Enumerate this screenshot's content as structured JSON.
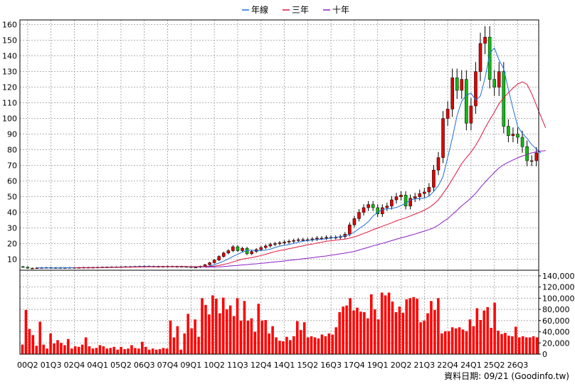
{
  "legend": [
    {
      "name": "年線",
      "color": "#1f6fd8"
    },
    {
      "name": "三年",
      "color": "#e0143c"
    },
    {
      "name": "十年",
      "color": "#8a1fc8"
    }
  ],
  "footer_text": "資料日期: 09/21 (Goodinfo.tw)",
  "colors": {
    "up": "#e00000",
    "down": "#11bb11",
    "wick": "#000000",
    "volume": "#ff0000",
    "grid": "#9a9a9a"
  },
  "chart_data": [
    {
      "type": "candlestick",
      "title": "",
      "ylim": [
        3,
        163
      ],
      "yticks": [
        10,
        20,
        30,
        40,
        50,
        60,
        70,
        80,
        90,
        100,
        110,
        120,
        130,
        140,
        150,
        160
      ],
      "grid": true,
      "legend_position": "top-center",
      "x_tick_labels": [
        "00Q2",
        "01Q3",
        "02Q4",
        "04Q1",
        "05Q2",
        "06Q3",
        "07Q4",
        "09Q1",
        "10Q2",
        "11Q3",
        "12Q4",
        "14Q1",
        "15Q2",
        "16Q3",
        "17Q4",
        "19Q1",
        "20Q2",
        "21Q3",
        "22Q4",
        "24Q1",
        "25Q2",
        "26Q3"
      ],
      "quarters_per_tick": 5,
      "first_quarter": "00Q1",
      "close": [
        5,
        4.3,
        4.3,
        4.5,
        4.6,
        4.7,
        4.4,
        4.6,
        4.5,
        4.6,
        4.7,
        4.7,
        4.7,
        4.8,
        4.8,
        4.8,
        4.9,
        5.0,
        5.0,
        5.1,
        5.1,
        5.2,
        5.3,
        5.3,
        5.4,
        5.5,
        5.6,
        5.5,
        5.4,
        5.4,
        5.4,
        5.5,
        5.4,
        5.4,
        5.3,
        5.2,
        4.9,
        4.9,
        5.5,
        6.5,
        7.8,
        9.5,
        11.8,
        14,
        15.5,
        18,
        15.5,
        17,
        13.5,
        15,
        16.2,
        17.5,
        18.5,
        19.5,
        20,
        20.5,
        21,
        21.5,
        22,
        22.5,
        22.5,
        22.5,
        23,
        23.5,
        23.5,
        24,
        24,
        24,
        24.5,
        26,
        32,
        36,
        40,
        43,
        45,
        43,
        39,
        43,
        44,
        48,
        50,
        51,
        44,
        49,
        50,
        52,
        53,
        56,
        67,
        75,
        100,
        106,
        126,
        118,
        125,
        97,
        108,
        130,
        148,
        152,
        125,
        120,
        130,
        95,
        89,
        90,
        88,
        82,
        73,
        73,
        78
      ],
      "sma_year": [
        null,
        null,
        null,
        4.6,
        4.5,
        4.5,
        4.5,
        4.5,
        4.5,
        4.6,
        4.6,
        4.6,
        4.7,
        4.7,
        4.7,
        4.7,
        4.8,
        4.8,
        4.9,
        4.9,
        5.0,
        5.1,
        5.1,
        5.2,
        5.2,
        5.3,
        5.4,
        5.4,
        5.4,
        5.4,
        5.4,
        5.4,
        5.4,
        5.4,
        5.4,
        5.3,
        5.2,
        5.1,
        5.1,
        5.2,
        5.7,
        6.6,
        7.6,
        8.8,
        10.2,
        11.8,
        13.2,
        14.6,
        15.6,
        15.9,
        15.4,
        15.6,
        15.9,
        16.5,
        17.5,
        18.4,
        18.9,
        19.4,
        20.2,
        20.9,
        21.5,
        22.0,
        22.3,
        22.6,
        22.8,
        23.1,
        23.6,
        24.0,
        24.5,
        25.0,
        25.8,
        27.3,
        29.6,
        31.6,
        34.0,
        37.6,
        40.0,
        41.8,
        42.3,
        42.5,
        43.1,
        44.4,
        45.8,
        47.8,
        48.6,
        48.8,
        49.0,
        50.4,
        53.3,
        57.0,
        62.8,
        75.0,
        87.6,
        101.7,
        111.0,
        115.0,
        116.2,
        111.8,
        114.3,
        125.8,
        141.6,
        145.0,
        137.3,
        131.8,
        118.5,
        106.3,
        94.9,
        90.4,
        87.3,
        83.3,
        80.5,
        77.8
      ],
      "sma_3y": [
        null,
        null,
        null,
        null,
        null,
        null,
        null,
        null,
        null,
        null,
        null,
        4.6,
        4.6,
        4.6,
        4.6,
        4.7,
        4.7,
        4.7,
        4.8,
        4.8,
        4.8,
        4.9,
        5.0,
        5.0,
        5.0,
        5.1,
        5.1,
        5.2,
        5.2,
        5.3,
        5.3,
        5.3,
        5.3,
        5.3,
        5.4,
        5.4,
        5.3,
        5.3,
        5.3,
        5.3,
        5.4,
        5.6,
        6.1,
        6.7,
        7.4,
        8.3,
        9.2,
        10.1,
        10.6,
        11.1,
        11.7,
        12.4,
        13.2,
        14.1,
        14.9,
        15.6,
        16.1,
        16.8,
        17.3,
        18.0,
        18.6,
        19.3,
        19.7,
        20.4,
        20.9,
        21.5,
        21.8,
        22.2,
        22.6,
        22.9,
        23.5,
        24.3,
        25.3,
        26.5,
        27.6,
        28.9,
        30.0,
        31.1,
        32.2,
        33.3,
        34.6,
        35.6,
        36.5,
        37.7,
        38.9,
        40.0,
        41.4,
        43.0,
        45.2,
        48.0,
        52.0,
        56.3,
        61.2,
        66.1,
        71.2,
        74.9,
        78.5,
        82.8,
        88.0,
        93.9,
        99.1,
        104.0,
        109.5,
        113.2,
        116.5,
        119.4,
        122.1,
        123.4,
        121.8,
        115.8,
        108.5,
        101.0,
        94.0
      ],
      "sma_10y": [
        null,
        null,
        null,
        null,
        null,
        null,
        null,
        null,
        null,
        null,
        null,
        null,
        null,
        null,
        null,
        null,
        null,
        null,
        null,
        null,
        null,
        null,
        null,
        null,
        null,
        null,
        null,
        null,
        null,
        null,
        null,
        null,
        null,
        null,
        null,
        null,
        null,
        null,
        null,
        4.9,
        5.0,
        5.1,
        5.2,
        5.4,
        5.6,
        5.9,
        6.1,
        6.4,
        6.6,
        6.9,
        7.1,
        7.4,
        7.7,
        8.0,
        8.3,
        8.6,
        8.9,
        9.3,
        9.6,
        9.9,
        10.3,
        10.6,
        11.0,
        11.4,
        11.8,
        12.1,
        12.6,
        13.0,
        13.5,
        13.9,
        14.5,
        15.0,
        15.9,
        16.8,
        17.6,
        18.6,
        19.3,
        20.2,
        21.0,
        21.9,
        22.8,
        23.7,
        24.4,
        25.3,
        26.1,
        27.1,
        28.0,
        29.0,
        30.1,
        31.8,
        34.0,
        35.9,
        38.7,
        41.3,
        44.2,
        46.5,
        49.2,
        52.2,
        55.8,
        59.3,
        62.4,
        65.5,
        68.4,
        70.5,
        72.0,
        73.5,
        74.8,
        76.0,
        77.0,
        78.0,
        78.7,
        79.2,
        79.5
      ]
    },
    {
      "type": "bar",
      "title": "",
      "ylim": [
        0,
        150000
      ],
      "yticks": [
        0,
        20000,
        40000,
        60000,
        80000,
        100000,
        120000,
        140000
      ],
      "ytick_labels": [
        "0",
        "20,000",
        "40,000",
        "60,000",
        "80,000",
        "100,000",
        "120,000",
        "140,000"
      ],
      "grid": true,
      "values": [
        17000,
        79000,
        45000,
        34000,
        15000,
        58000,
        17000,
        10000,
        37000,
        19000,
        25000,
        20000,
        16000,
        27000,
        10000,
        14000,
        13000,
        17000,
        30000,
        14000,
        10000,
        11000,
        16000,
        14000,
        10000,
        11000,
        13000,
        8000,
        13000,
        9000,
        10000,
        16000,
        11000,
        10000,
        22000,
        13000,
        8000,
        10000,
        8000,
        9000,
        11000,
        10000,
        60000,
        30000,
        50000,
        8000,
        37000,
        72000,
        46000,
        62000,
        31000,
        100000,
        88000,
        71000,
        105000,
        99000,
        73000,
        101000,
        80000,
        87000,
        68000,
        100000,
        60000,
        95000,
        60000,
        64000,
        40000,
        90000,
        60000,
        61000,
        37000,
        50000,
        30000,
        24000,
        23000,
        31000,
        25000,
        32000,
        59000,
        43000,
        57000,
        30000,
        32000,
        30000,
        28000,
        35000,
        32000,
        37000,
        35000,
        48000,
        75000,
        85000,
        87000,
        100000,
        78000,
        83000,
        76000,
        75000,
        64000,
        107000,
        80000,
        62000,
        110000,
        105000,
        110000,
        94000,
        75000,
        85000,
        74000,
        98000,
        100000,
        102000,
        99000,
        57000,
        60000,
        73000,
        95000,
        79000,
        100000,
        37000,
        41000,
        41000,
        48000,
        46000,
        48000,
        44000,
        41000,
        62000,
        50000,
        82000,
        61000,
        78000,
        84000,
        47000,
        92000,
        42000,
        36000,
        38000,
        33000,
        32000,
        49000,
        30000,
        32000,
        30000,
        30000,
        32000,
        30000
      ]
    }
  ]
}
